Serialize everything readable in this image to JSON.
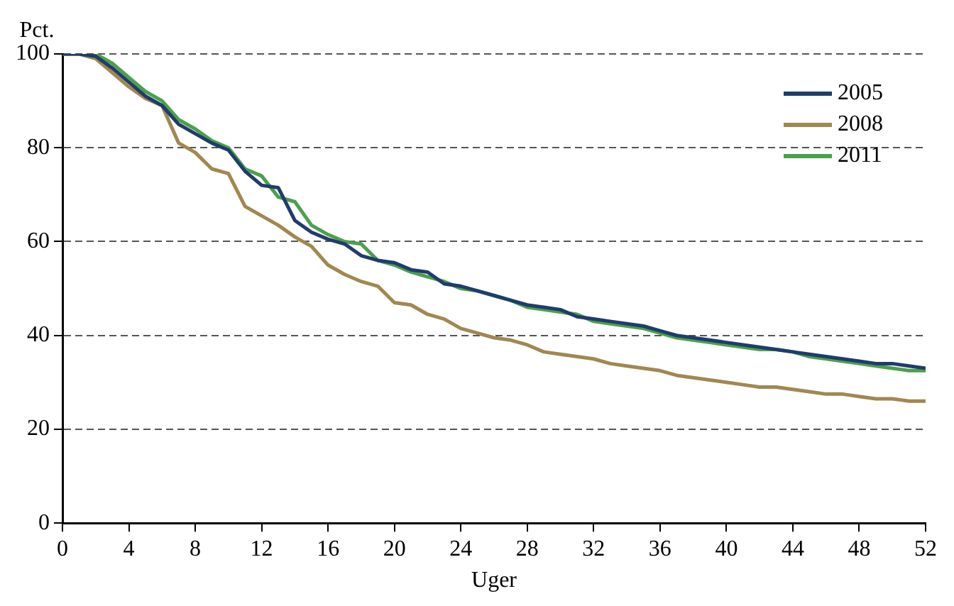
{
  "chart_data": {
    "type": "line",
    "ylabel": "Pct.",
    "xlabel": "Uger",
    "x": [
      0,
      1,
      2,
      3,
      4,
      5,
      6,
      7,
      8,
      9,
      10,
      11,
      12,
      13,
      14,
      15,
      16,
      17,
      18,
      19,
      20,
      21,
      22,
      23,
      24,
      25,
      26,
      27,
      28,
      29,
      30,
      31,
      32,
      33,
      34,
      35,
      36,
      37,
      38,
      39,
      40,
      41,
      42,
      43,
      44,
      45,
      46,
      47,
      48,
      49,
      50,
      51,
      52
    ],
    "series": [
      {
        "name": "2005",
        "color": "#1f3d6b",
        "values": [
          100,
          100,
          99.5,
          97,
          94,
          91,
          89,
          85,
          83,
          81,
          79.5,
          75,
          72,
          71.5,
          64.5,
          62,
          60.5,
          59.5,
          57,
          56,
          55.5,
          54,
          53.5,
          51,
          50.5,
          49.5,
          48.5,
          47.5,
          46.5,
          46,
          45.5,
          44,
          43.5,
          43,
          42.5,
          42,
          41,
          40,
          39.5,
          39,
          38.5,
          38,
          37.5,
          37,
          36.5,
          36,
          35.5,
          35,
          34.5,
          34,
          34,
          33.5,
          33
        ]
      },
      {
        "name": "2008",
        "color": "#a08850",
        "values": [
          100,
          100,
          99,
          96,
          93,
          90.5,
          89,
          81,
          79,
          75.5,
          74.5,
          67.5,
          65.5,
          63.5,
          61,
          59,
          55,
          53,
          51.5,
          50.5,
          47,
          46.5,
          44.5,
          43.5,
          41.5,
          40.5,
          39.5,
          39,
          38,
          36.5,
          36,
          35.5,
          35,
          34,
          33.5,
          33,
          32.5,
          31.5,
          31,
          30.5,
          30,
          29.5,
          29,
          29,
          28.5,
          28,
          27.5,
          27.5,
          27,
          26.5,
          26.5,
          26,
          26
        ]
      },
      {
        "name": "2011",
        "color": "#4ca04c",
        "values": [
          100,
          100,
          100,
          98,
          95,
          92,
          90,
          86,
          84,
          81.5,
          80,
          75.5,
          74,
          69.5,
          68.5,
          63.5,
          61.5,
          60,
          59.5,
          56,
          55,
          53.5,
          52.5,
          51.5,
          50,
          49.5,
          48.5,
          47.5,
          46,
          45.5,
          45,
          44.5,
          43,
          42.5,
          42,
          41.5,
          40.5,
          39.5,
          39,
          38.5,
          38,
          37.5,
          37,
          37,
          36.5,
          35.5,
          35,
          34.5,
          34,
          33.5,
          33,
          32.5,
          32.5
        ]
      }
    ],
    "xlim": [
      0,
      52
    ],
    "xticks": [
      0,
      4,
      8,
      12,
      16,
      20,
      24,
      28,
      32,
      36,
      40,
      44,
      48,
      52
    ],
    "ylim": [
      0,
      100
    ],
    "yticks": [
      0,
      20,
      40,
      60,
      80,
      100
    ],
    "grid": "y",
    "legend": "top right",
    "marker": "none",
    "line_style": "solid"
  }
}
